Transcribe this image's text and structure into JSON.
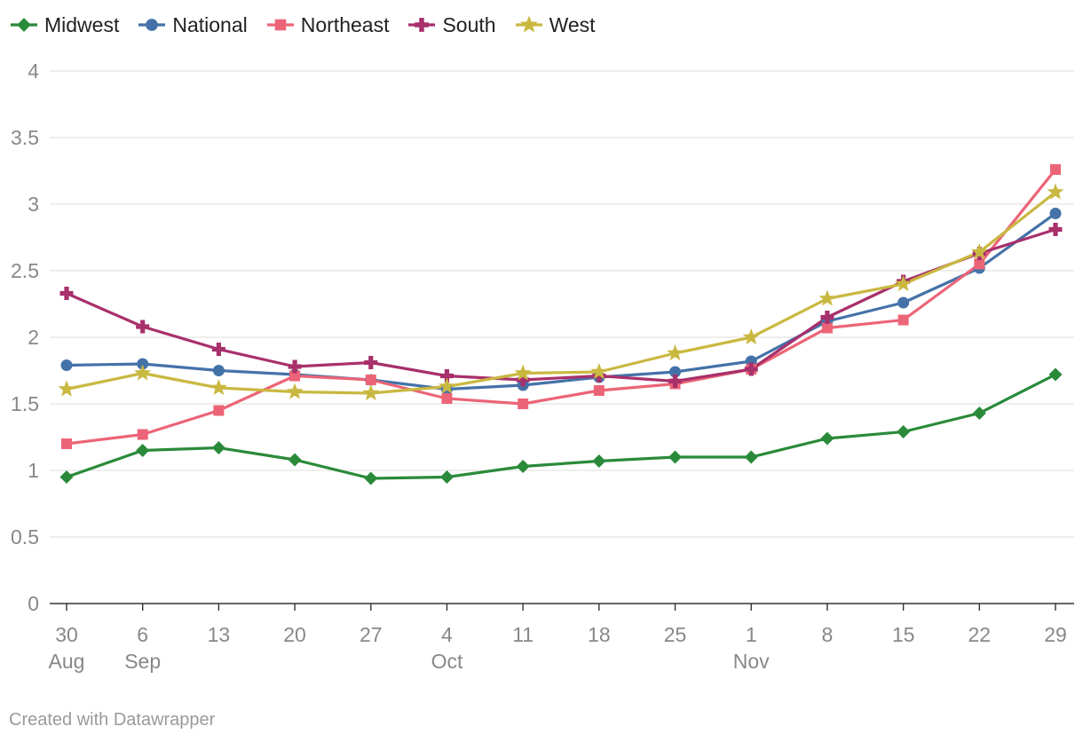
{
  "chart_data": {
    "type": "line",
    "categories": [
      "30 Aug",
      "6 Sep",
      "13 Sep",
      "20 Sep",
      "27 Sep",
      "4 Oct",
      "11 Oct",
      "18 Oct",
      "25 Oct",
      "1 Nov",
      "8 Nov",
      "15 Nov",
      "22 Nov",
      "29 Nov"
    ],
    "x_tick_top": [
      "30",
      "6",
      "13",
      "20",
      "27",
      "4",
      "11",
      "18",
      "25",
      "1",
      "8",
      "15",
      "22",
      "29"
    ],
    "x_tick_bottom": [
      "Aug",
      "Sep",
      "",
      "",
      "",
      "Oct",
      "",
      "",
      "",
      "Nov",
      "",
      "",
      "",
      ""
    ],
    "y_ticks": [
      0,
      0.5,
      1,
      1.5,
      2,
      2.5,
      3,
      3.5,
      4
    ],
    "y_tick_labels": [
      "0",
      "0.5",
      "1",
      "1.5",
      "2",
      "2.5",
      "3",
      "3.5",
      "4"
    ],
    "ylim": [
      0,
      4
    ],
    "grid": true,
    "legend_position": "top-left",
    "title": "",
    "xlabel": "",
    "ylabel": "",
    "series": [
      {
        "name": "Midwest",
        "color": "#2a8a3a",
        "marker": "diamond",
        "values": [
          0.95,
          1.15,
          1.17,
          1.08,
          0.94,
          0.95,
          1.03,
          1.07,
          1.1,
          1.1,
          1.24,
          1.29,
          1.43,
          1.72
        ]
      },
      {
        "name": "National",
        "color": "#4472a8",
        "marker": "circle",
        "values": [
          1.79,
          1.8,
          1.75,
          1.72,
          1.68,
          1.61,
          1.64,
          1.7,
          1.74,
          1.82,
          2.12,
          2.26,
          2.52,
          2.93
        ]
      },
      {
        "name": "Northeast",
        "color": "#ec6477",
        "marker": "square",
        "values": [
          1.2,
          1.27,
          1.45,
          1.71,
          1.68,
          1.54,
          1.5,
          1.6,
          1.65,
          1.76,
          2.07,
          2.13,
          2.55,
          3.26
        ]
      },
      {
        "name": "South",
        "color": "#a8306b",
        "marker": "cross",
        "values": [
          2.33,
          2.08,
          1.91,
          1.78,
          1.81,
          1.71,
          1.68,
          1.71,
          1.67,
          1.76,
          2.15,
          2.42,
          2.63,
          2.81
        ]
      },
      {
        "name": "West",
        "color": "#c9b840",
        "marker": "star",
        "values": [
          1.61,
          1.73,
          1.62,
          1.59,
          1.58,
          1.63,
          1.73,
          1.74,
          1.88,
          2.0,
          2.29,
          2.4,
          2.64,
          3.09
        ]
      }
    ]
  },
  "credit": "Created with Datawrapper"
}
